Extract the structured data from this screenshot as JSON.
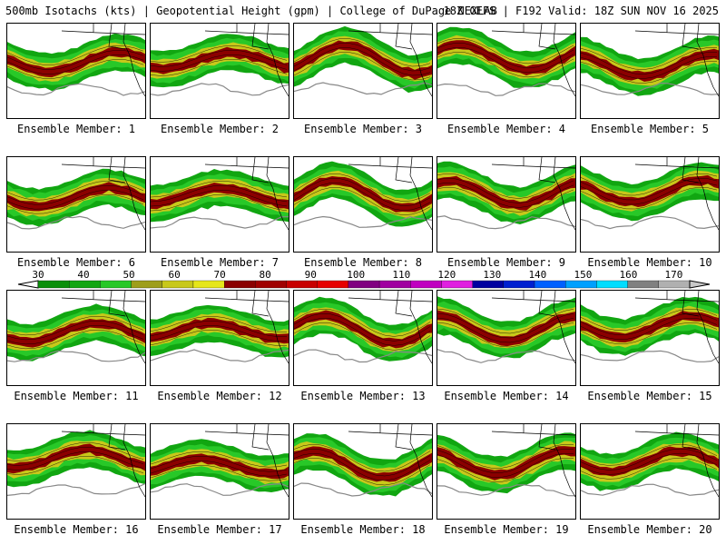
{
  "header": {
    "title_left": "500mb Isotachs (kts) | Geopotential Height (gpm) | College of DuPage NEXLAB",
    "title_right": "18Z GEFS | F192 Valid: 18Z SUN NOV 16 2025"
  },
  "colorbar": {
    "labels": [
      "30",
      "40",
      "50",
      "60",
      "70",
      "80",
      "90",
      "100",
      "110",
      "120",
      "130",
      "140",
      "150",
      "160",
      "170"
    ],
    "colors": [
      "#0a8f0a",
      "#11a611",
      "#28c828",
      "#9e9e1a",
      "#c8c81a",
      "#e6e61a",
      "#8b0000",
      "#a00000",
      "#c80000",
      "#e60000",
      "#800080",
      "#a000a0",
      "#c000c0",
      "#e020e0",
      "#0000a0",
      "#0020d0",
      "#0060ff",
      "#00a0ff",
      "#00ddff",
      "#808080",
      "#b0b0b0"
    ]
  },
  "panels": [
    {
      "label": "Ensemble Member: 1",
      "seed": 1
    },
    {
      "label": "Ensemble Member: 2",
      "seed": 2
    },
    {
      "label": "Ensemble Member: 3",
      "seed": 3
    },
    {
      "label": "Ensemble Member: 4",
      "seed": 4
    },
    {
      "label": "Ensemble Member: 5",
      "seed": 5
    },
    {
      "label": "Ensemble Member: 6",
      "seed": 6
    },
    {
      "label": "Ensemble Member: 7",
      "seed": 7
    },
    {
      "label": "Ensemble Member: 8",
      "seed": 8
    },
    {
      "label": "Ensemble Member: 9",
      "seed": 9
    },
    {
      "label": "Ensemble Member: 10",
      "seed": 10
    },
    {
      "label": "Ensemble Member: 11",
      "seed": 11
    },
    {
      "label": "Ensemble Member: 12",
      "seed": 12
    },
    {
      "label": "Ensemble Member: 13",
      "seed": 13
    },
    {
      "label": "Ensemble Member: 14",
      "seed": 14
    },
    {
      "label": "Ensemble Member: 15",
      "seed": 15
    },
    {
      "label": "Ensemble Member: 16",
      "seed": 16
    },
    {
      "label": "Ensemble Member: 17",
      "seed": 17
    },
    {
      "label": "Ensemble Member: 18",
      "seed": 18
    },
    {
      "label": "Ensemble Member: 19",
      "seed": 19
    },
    {
      "label": "Ensemble Member: 20",
      "seed": 20
    }
  ]
}
